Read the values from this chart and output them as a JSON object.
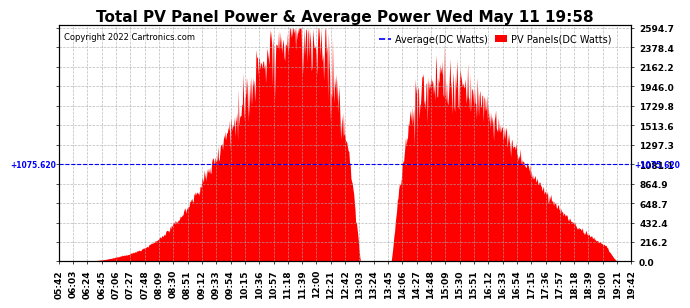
{
  "title": "Total PV Panel Power & Average Power Wed May 11 19:58",
  "copyright": "Copyright 2022 Cartronics.com",
  "legend_average": "Average(DC Watts)",
  "legend_pv": "PV Panels(DC Watts)",
  "legend_average_color": "blue",
  "legend_pv_color": "red",
  "y_right_ticks": [
    0.0,
    216.2,
    432.4,
    648.7,
    864.9,
    1081.1,
    1297.3,
    1513.6,
    1729.8,
    1946.0,
    2162.2,
    2378.4,
    2594.7
  ],
  "y_left_label": "+1075.620",
  "y_right_label": "+1075.620",
  "hline_value": 1081.1,
  "background_color": "#ffffff",
  "fill_color": "red",
  "line_color": "blue",
  "grid_color": "#aaaaaa",
  "x_tick_labels": [
    "05:42",
    "06:03",
    "06:24",
    "06:45",
    "07:06",
    "07:27",
    "07:48",
    "08:09",
    "08:30",
    "08:51",
    "09:12",
    "09:33",
    "09:54",
    "10:15",
    "10:36",
    "10:57",
    "11:18",
    "11:39",
    "12:00",
    "12:21",
    "12:42",
    "13:03",
    "13:24",
    "13:45",
    "14:06",
    "14:27",
    "14:48",
    "15:09",
    "15:30",
    "15:51",
    "16:12",
    "16:33",
    "16:54",
    "17:15",
    "17:36",
    "17:57",
    "18:18",
    "18:39",
    "19:00",
    "19:21",
    "19:42"
  ],
  "title_fontsize": 11,
  "tick_fontsize": 6.5,
  "copyright_fontsize": 6
}
